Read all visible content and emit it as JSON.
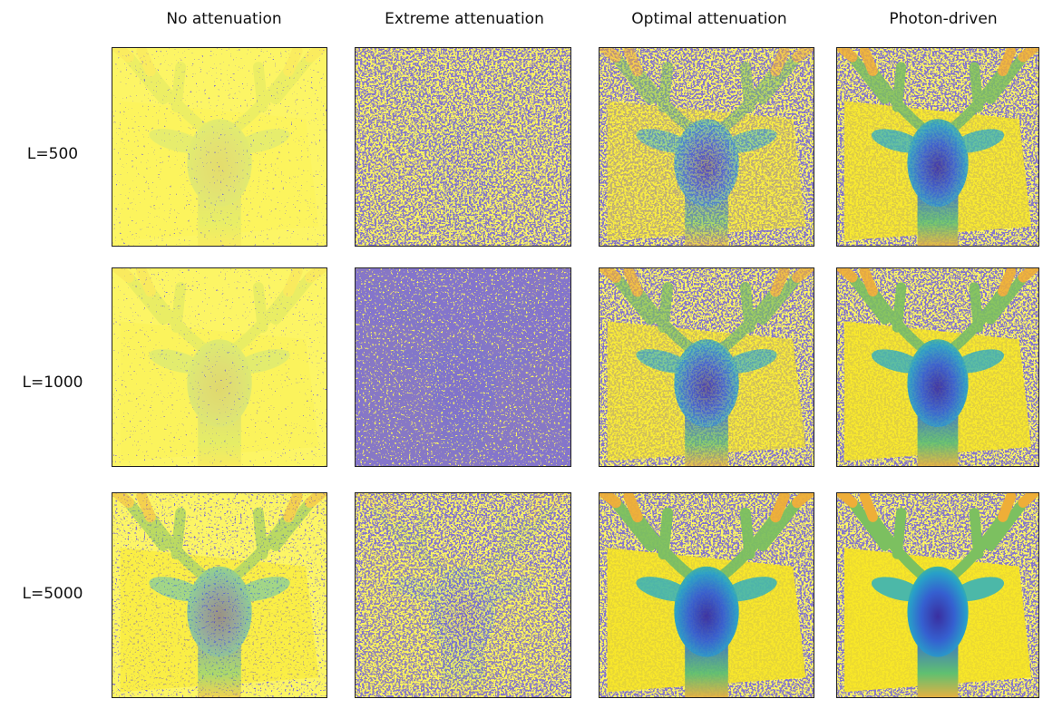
{
  "column_headers": [
    "No attenuation",
    "Extreme attenuation",
    "Optimal attenuation",
    "Photon-driven"
  ],
  "row_labels": [
    "L=500",
    "L=1000",
    "L=5000"
  ]
}
